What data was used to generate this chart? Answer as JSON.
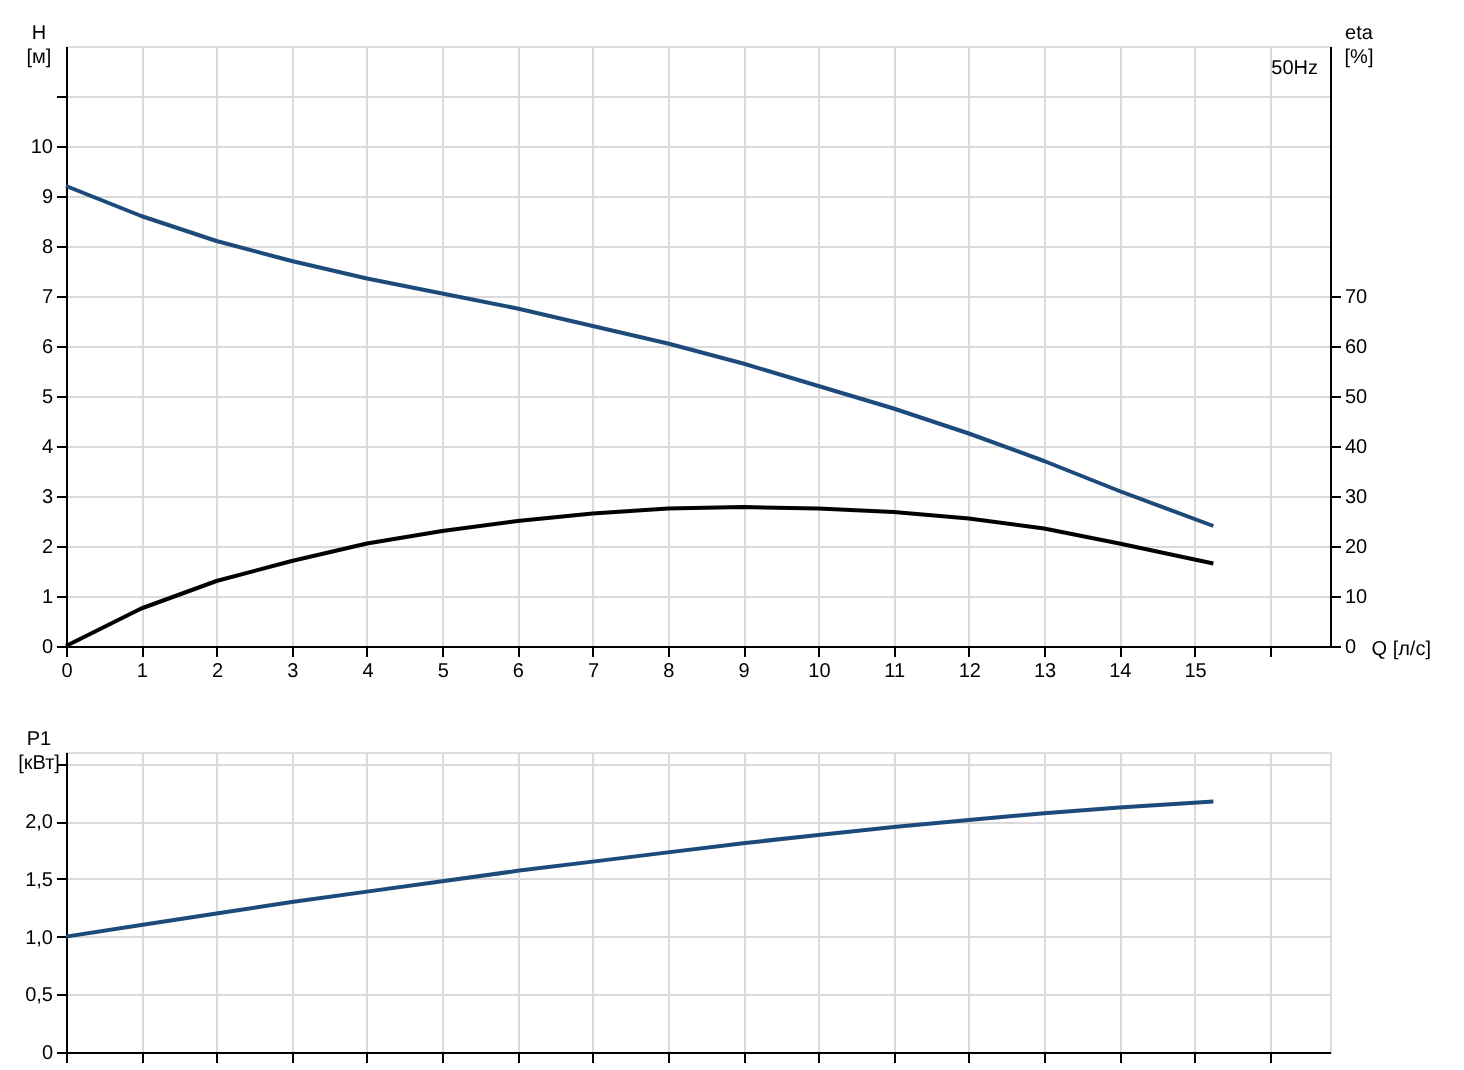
{
  "chart_data": [
    {
      "type": "line",
      "xlabel": "Q [л/с]",
      "ylabel": "H [м]",
      "y2label": "eta [%]",
      "annotations": [
        "50Hz"
      ],
      "x": [
        0,
        1,
        2,
        3,
        4,
        5,
        6,
        7,
        8,
        9,
        10,
        11,
        12,
        13,
        14,
        15.25
      ],
      "series": [
        {
          "color": "#1c4a7a",
          "values": [
            9.2,
            8.6,
            8.1,
            7.7,
            7.35,
            7.05,
            6.75,
            6.4,
            6.05,
            5.65,
            5.2,
            4.75,
            4.25,
            3.7,
            3.1,
            2.4
          ]
        },
        {
          "color": "#000000",
          "axis": "y2",
          "values": [
            0,
            7.5,
            13,
            17,
            20.5,
            23,
            25,
            26.5,
            27.5,
            27.8,
            27.5,
            26.8,
            25.5,
            23.5,
            20.5,
            16.5
          ]
        }
      ],
      "xlim": [
        0,
        16.8
      ],
      "xticks": [
        0,
        1,
        2,
        3,
        4,
        5,
        6,
        7,
        8,
        9,
        10,
        11,
        12,
        13,
        14,
        15,
        {
          "value": 16,
          "label": null
        }
      ],
      "ylim": [
        0,
        12
      ],
      "yticks": [
        0,
        1,
        2,
        3,
        4,
        5,
        6,
        7,
        8,
        9,
        10,
        {
          "value": 11,
          "label": null
        }
      ],
      "y2lim": [
        0,
        120
      ],
      "y2ticks": [
        0,
        10,
        20,
        30,
        40,
        50,
        60,
        70
      ],
      "grid": true,
      "marker": "none",
      "line_style": "solid"
    },
    {
      "type": "line",
      "ylabel": "P1 [кВт]",
      "x": [
        0,
        1,
        2,
        3,
        4,
        5,
        6,
        7,
        8,
        9,
        10,
        11,
        12,
        13,
        14,
        15.25
      ],
      "series": [
        {
          "color": "#1c4a7a",
          "values": [
            1.0,
            1.1,
            1.2,
            1.3,
            1.39,
            1.48,
            1.57,
            1.65,
            1.73,
            1.81,
            1.88,
            1.95,
            2.01,
            2.07,
            2.12,
            2.17
          ]
        }
      ],
      "xlim": [
        0,
        16.8
      ],
      "xticks": [
        0,
        1,
        2,
        3,
        4,
        5,
        6,
        7,
        8,
        9,
        10,
        11,
        12,
        13,
        14,
        15,
        {
          "value": 16,
          "label": null
        }
      ],
      "ylim": [
        0,
        2.6
      ],
      "yticks": [
        0,
        {
          "value": 0.5,
          "label": "0,5"
        },
        {
          "value": 1,
          "label": "1,0"
        },
        {
          "value": 1.5,
          "label": "1,5"
        },
        {
          "value": 2,
          "label": "2,0"
        },
        {
          "value": 2.5,
          "label": null
        }
      ],
      "tick_labels": "y",
      "grid": true,
      "marker": "none",
      "line_style": "solid"
    }
  ]
}
